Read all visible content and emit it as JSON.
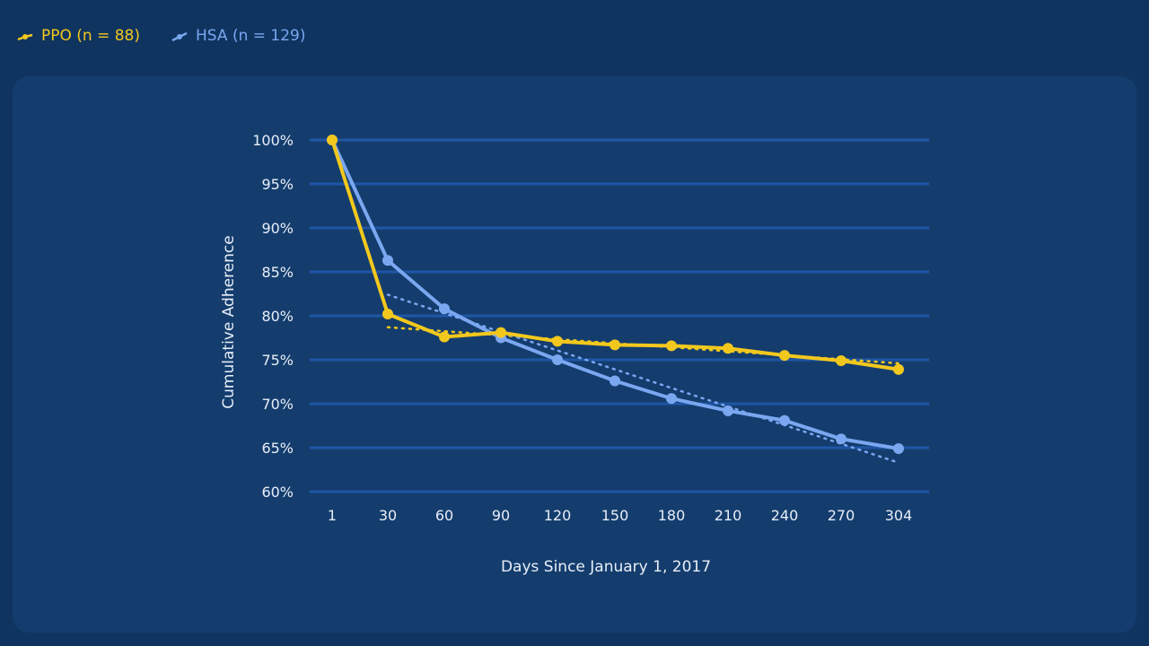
{
  "colors": {
    "background": "#0f3460",
    "panel": "#143d6e",
    "grid": "#1f56a6",
    "ppo": "#f2c81d",
    "hsa": "#7aa7f0",
    "text": "#e8eef7"
  },
  "legend": {
    "ppo_label": "PPO (n = 88)",
    "hsa_label": "HSA (n = 129)",
    "ppo_icon": "line-marker-icon",
    "hsa_icon": "line-marker-icon"
  },
  "chart_data": {
    "type": "line",
    "xlabel": "Days Since January 1, 2017",
    "ylabel": "Cumulative Adherence",
    "categories": [
      "1",
      "30",
      "60",
      "90",
      "120",
      "150",
      "180",
      "210",
      "240",
      "270",
      "304"
    ],
    "ylim": [
      60,
      100
    ],
    "yticks": [
      100,
      95,
      90,
      85,
      80,
      75,
      70,
      65,
      60
    ],
    "ytick_labels": [
      "100%",
      "95%",
      "90%",
      "85%",
      "80%",
      "75%",
      "70%",
      "65%",
      "60%"
    ],
    "grid": true,
    "legend_position": "top-left",
    "series": [
      {
        "name": "PPO (n = 88)",
        "color": "#f2c81d",
        "values": [
          100,
          80.2,
          77.6,
          78.1,
          77.1,
          76.7,
          76.6,
          76.3,
          75.5,
          74.9,
          73.9
        ],
        "trendline": {
          "from_index": 1,
          "start": 78.7,
          "end": 74.6
        }
      },
      {
        "name": "HSA (n = 129)",
        "color": "#7aa7f0",
        "values": [
          100,
          86.3,
          80.8,
          77.5,
          75.0,
          72.6,
          70.6,
          69.2,
          68.1,
          66.0,
          64.9
        ],
        "trendline": {
          "from_index": 1,
          "start": 82.4,
          "end": 63.3
        }
      }
    ]
  }
}
